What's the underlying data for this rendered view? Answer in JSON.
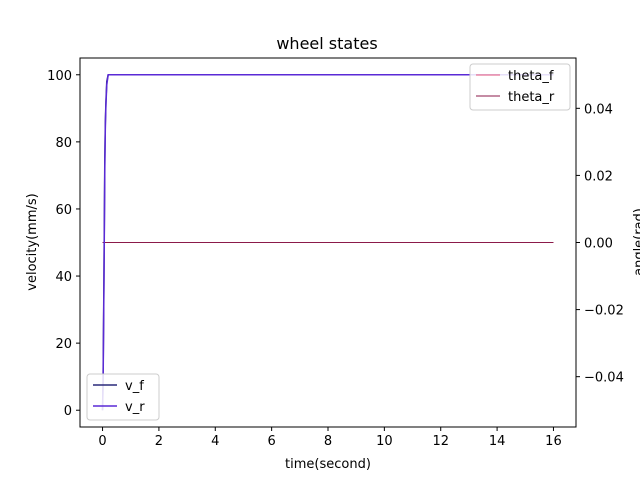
{
  "chart_data": {
    "type": "line",
    "title": "wheel states",
    "xlabel": "time(second)",
    "ylabel_left": "velocity(mm/s)",
    "ylabel_right": "angle(rad)",
    "xlim": [
      -0.8,
      16.8
    ],
    "ylim_left": [
      -5,
      105
    ],
    "ylim_right": [
      -0.055,
      0.055
    ],
    "xticks": [
      0,
      2,
      4,
      6,
      8,
      10,
      12,
      14,
      16
    ],
    "yticks_left": [
      0,
      20,
      40,
      60,
      80,
      100
    ],
    "yticks_right": [
      {
        "value": -0.04,
        "label": "−0.04"
      },
      {
        "value": -0.02,
        "label": "−0.02"
      },
      {
        "value": 0.0,
        "label": "0.00"
      },
      {
        "value": 0.02,
        "label": "0.02"
      },
      {
        "value": 0.04,
        "label": "0.04"
      }
    ],
    "grid": false,
    "series_left": [
      {
        "name": "v_f",
        "color": "#2a2a7a",
        "x": [
          0,
          0.02,
          0.05,
          0.08,
          0.1,
          0.12,
          0.15,
          0.2,
          16
        ],
        "y": [
          0,
          10,
          40,
          75,
          86,
          92,
          98,
          100,
          100
        ]
      },
      {
        "name": "v_r",
        "color": "#5a2ad6",
        "x": [
          0,
          0.02,
          0.05,
          0.08,
          0.1,
          0.12,
          0.15,
          0.2,
          16
        ],
        "y": [
          0,
          8,
          38,
          72,
          85,
          91,
          97,
          100,
          100
        ]
      }
    ],
    "series_right": [
      {
        "name": "theta_f",
        "color": "#e0527a",
        "x": [
          0,
          16
        ],
        "y": [
          0,
          0
        ]
      },
      {
        "name": "theta_r",
        "color": "#8b1a4a",
        "x": [
          0,
          16
        ],
        "y": [
          0,
          0
        ]
      }
    ],
    "legend_left_position": "lower-left",
    "legend_right_position": "upper-right"
  }
}
